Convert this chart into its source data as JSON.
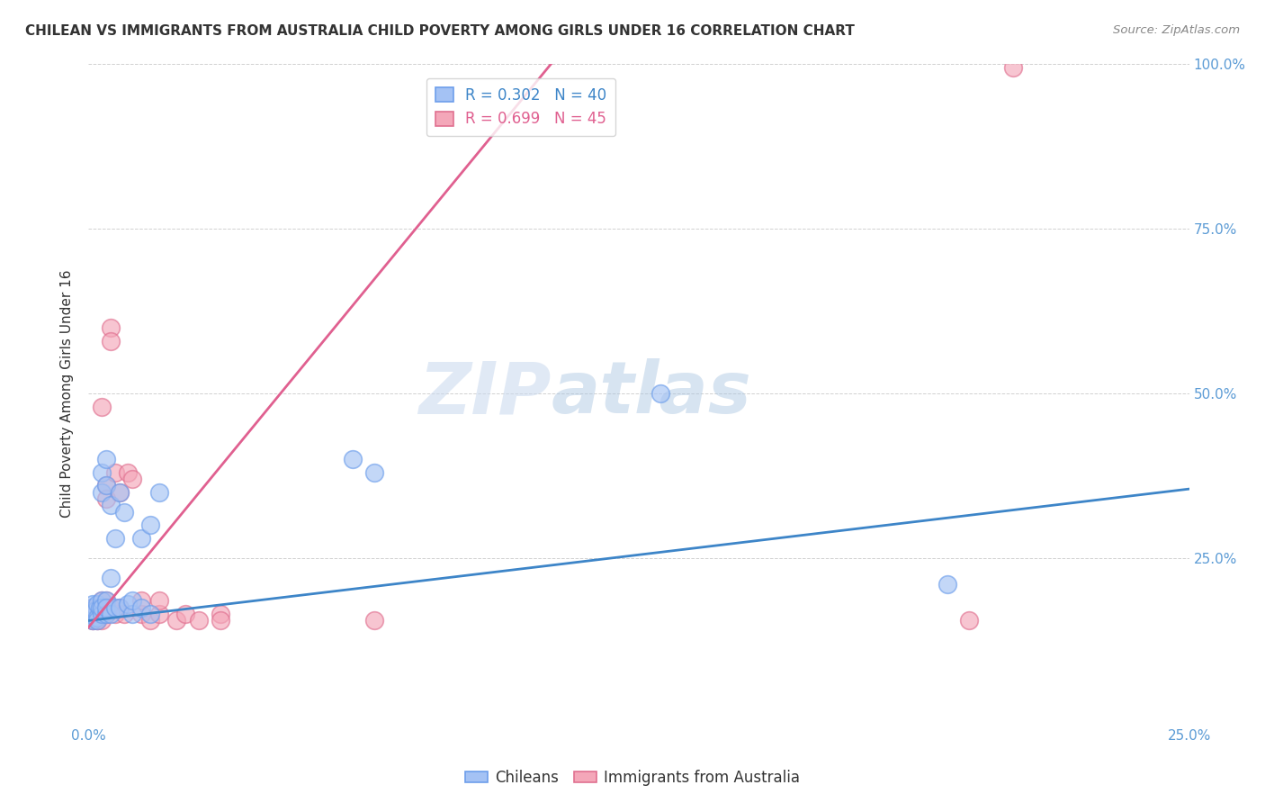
{
  "title": "CHILEAN VS IMMIGRANTS FROM AUSTRALIA CHILD POVERTY AMONG GIRLS UNDER 16 CORRELATION CHART",
  "source": "Source: ZipAtlas.com",
  "ylabel": "Child Poverty Among Girls Under 16",
  "xlabel": "",
  "xlim": [
    0,
    0.25
  ],
  "ylim": [
    0,
    1.0
  ],
  "xticks": [
    0.0,
    0.05,
    0.1,
    0.15,
    0.2,
    0.25
  ],
  "yticks": [
    0.0,
    0.25,
    0.5,
    0.75,
    1.0
  ],
  "xtick_labels": [
    "0.0%",
    "",
    "",
    "",
    "",
    "25.0%"
  ],
  "ytick_labels_right": [
    "",
    "25.0%",
    "50.0%",
    "75.0%",
    "100.0%"
  ],
  "blue_R": 0.302,
  "blue_N": 40,
  "pink_R": 0.699,
  "pink_N": 45,
  "blue_color": "#a4c2f4",
  "pink_color": "#f4a7b9",
  "blue_edge_color": "#6d9eeb",
  "pink_edge_color": "#e07090",
  "blue_line_color": "#3d85c8",
  "pink_line_color": "#e06090",
  "watermark_zip": "ZIP",
  "watermark_atlas": "atlas",
  "legend_label_blue": "Chileans",
  "legend_label_pink": "Immigrants from Australia",
  "blue_dots": [
    [
      0.0005,
      0.165
    ],
    [
      0.0008,
      0.175
    ],
    [
      0.001,
      0.16
    ],
    [
      0.001,
      0.18
    ],
    [
      0.001,
      0.155
    ],
    [
      0.0015,
      0.17
    ],
    [
      0.002,
      0.16
    ],
    [
      0.002,
      0.18
    ],
    [
      0.002,
      0.155
    ],
    [
      0.0025,
      0.175
    ],
    [
      0.003,
      0.165
    ],
    [
      0.003,
      0.185
    ],
    [
      0.003,
      0.175
    ],
    [
      0.003,
      0.35
    ],
    [
      0.003,
      0.38
    ],
    [
      0.004,
      0.165
    ],
    [
      0.004,
      0.185
    ],
    [
      0.004,
      0.175
    ],
    [
      0.004,
      0.36
    ],
    [
      0.004,
      0.4
    ],
    [
      0.005,
      0.165
    ],
    [
      0.005,
      0.22
    ],
    [
      0.005,
      0.33
    ],
    [
      0.006,
      0.175
    ],
    [
      0.006,
      0.28
    ],
    [
      0.007,
      0.175
    ],
    [
      0.007,
      0.35
    ],
    [
      0.008,
      0.32
    ],
    [
      0.009,
      0.18
    ],
    [
      0.01,
      0.165
    ],
    [
      0.01,
      0.185
    ],
    [
      0.012,
      0.175
    ],
    [
      0.012,
      0.28
    ],
    [
      0.014,
      0.165
    ],
    [
      0.014,
      0.3
    ],
    [
      0.016,
      0.35
    ],
    [
      0.06,
      0.4
    ],
    [
      0.065,
      0.38
    ],
    [
      0.13,
      0.5
    ],
    [
      0.195,
      0.21
    ]
  ],
  "pink_dots": [
    [
      0.0005,
      0.165
    ],
    [
      0.0008,
      0.158
    ],
    [
      0.001,
      0.155
    ],
    [
      0.001,
      0.17
    ],
    [
      0.001,
      0.175
    ],
    [
      0.001,
      0.155
    ],
    [
      0.0015,
      0.165
    ],
    [
      0.002,
      0.155
    ],
    [
      0.002,
      0.175
    ],
    [
      0.002,
      0.165
    ],
    [
      0.002,
      0.155
    ],
    [
      0.0025,
      0.175
    ],
    [
      0.003,
      0.165
    ],
    [
      0.003,
      0.185
    ],
    [
      0.003,
      0.175
    ],
    [
      0.003,
      0.155
    ],
    [
      0.003,
      0.48
    ],
    [
      0.004,
      0.165
    ],
    [
      0.004,
      0.185
    ],
    [
      0.004,
      0.175
    ],
    [
      0.004,
      0.36
    ],
    [
      0.004,
      0.34
    ],
    [
      0.005,
      0.175
    ],
    [
      0.005,
      0.6
    ],
    [
      0.005,
      0.58
    ],
    [
      0.006,
      0.165
    ],
    [
      0.006,
      0.38
    ],
    [
      0.007,
      0.175
    ],
    [
      0.007,
      0.35
    ],
    [
      0.008,
      0.165
    ],
    [
      0.009,
      0.38
    ],
    [
      0.01,
      0.37
    ],
    [
      0.012,
      0.165
    ],
    [
      0.012,
      0.185
    ],
    [
      0.014,
      0.155
    ],
    [
      0.016,
      0.165
    ],
    [
      0.016,
      0.185
    ],
    [
      0.02,
      0.155
    ],
    [
      0.022,
      0.165
    ],
    [
      0.025,
      0.155
    ],
    [
      0.03,
      0.165
    ],
    [
      0.03,
      0.155
    ],
    [
      0.065,
      0.155
    ],
    [
      0.2,
      0.155
    ],
    [
      0.21,
      0.995
    ]
  ],
  "blue_line_x": [
    0.0,
    0.25
  ],
  "blue_line_y": [
    0.155,
    0.355
  ],
  "pink_line_x": [
    0.0,
    0.105
  ],
  "pink_line_y": [
    0.145,
    1.0
  ]
}
